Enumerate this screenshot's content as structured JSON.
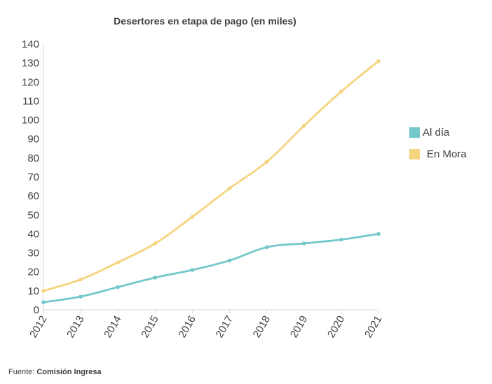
{
  "chart_data": {
    "type": "line",
    "title": "Desertores en etapa de pago (en miles)",
    "xlabel": "",
    "ylabel": "",
    "categories": [
      "2012",
      "2013",
      "2014",
      "2015",
      "2016",
      "2017",
      "2018",
      "2019",
      "2020",
      "2021"
    ],
    "series": [
      {
        "name": "Al día",
        "color": "#75C8C9",
        "values": [
          4,
          7,
          12,
          17,
          21,
          26,
          33,
          35,
          37,
          40
        ]
      },
      {
        "name": "En Mora",
        "color": "#F5D47E",
        "values": [
          10,
          16,
          25,
          35,
          49,
          64,
          78,
          97,
          115,
          131
        ]
      }
    ],
    "ylim": [
      0,
      140
    ],
    "yticks": [
      0,
      10,
      20,
      30,
      40,
      50,
      60,
      70,
      80,
      90,
      100,
      110,
      120,
      130,
      140
    ],
    "grid": false,
    "legend_position": "right"
  },
  "source": {
    "prefix": "Fuente: ",
    "name": "Comisión Ingresa"
  }
}
